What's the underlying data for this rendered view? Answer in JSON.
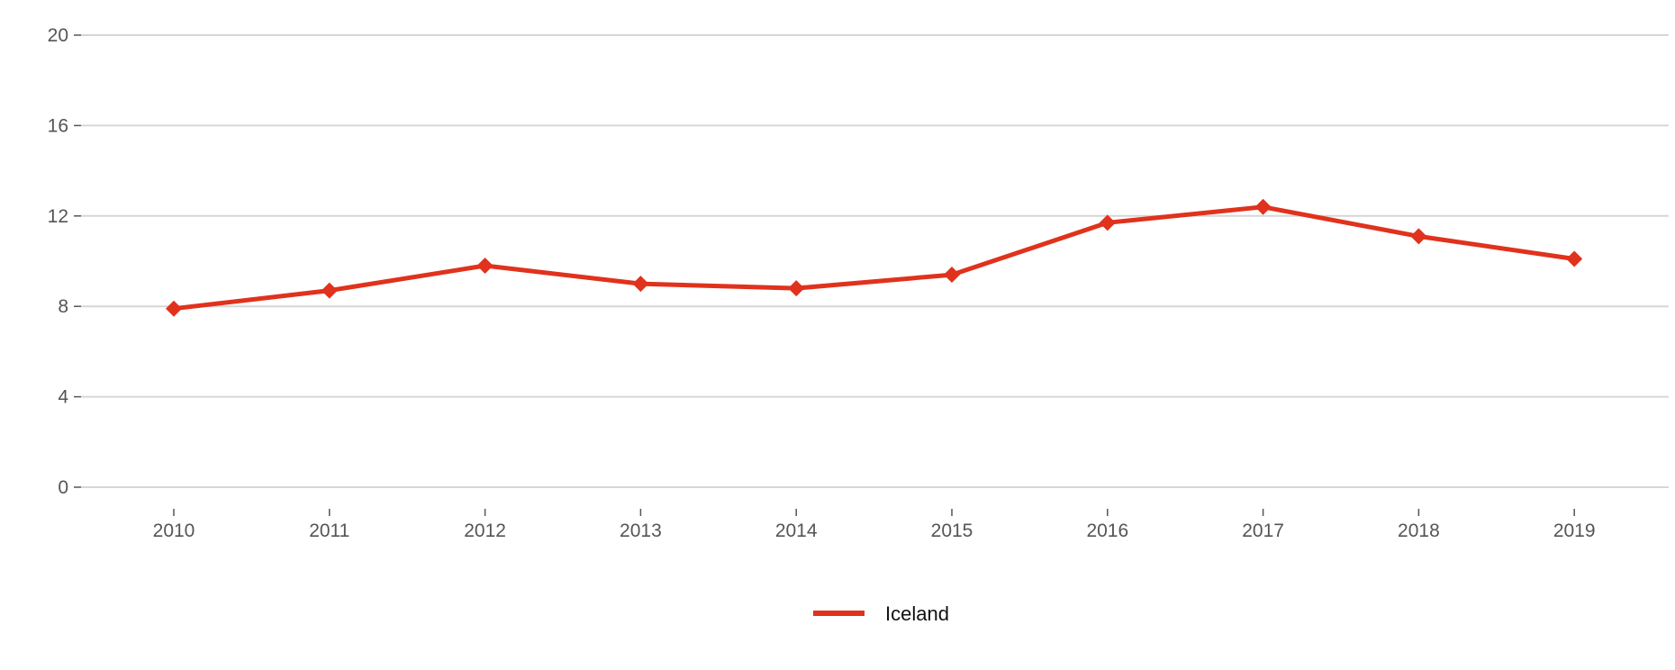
{
  "chart_data": {
    "type": "line",
    "title": "",
    "xlabel": "",
    "ylabel": "",
    "x": [
      "2010",
      "2011",
      "2012",
      "2013",
      "2014",
      "2015",
      "2016",
      "2017",
      "2018",
      "2019"
    ],
    "ylim": [
      0,
      20
    ],
    "yticks": [
      "0",
      "4",
      "8",
      "12",
      "16",
      "20"
    ],
    "grid": true,
    "legend_position": "bottom-center",
    "series": [
      {
        "name": "Iceland",
        "color": "#e0321c",
        "marker": "diamond",
        "values": [
          7.9,
          8.7,
          9.8,
          9.0,
          8.8,
          9.4,
          11.7,
          12.4,
          11.1,
          10.1
        ]
      }
    ]
  }
}
